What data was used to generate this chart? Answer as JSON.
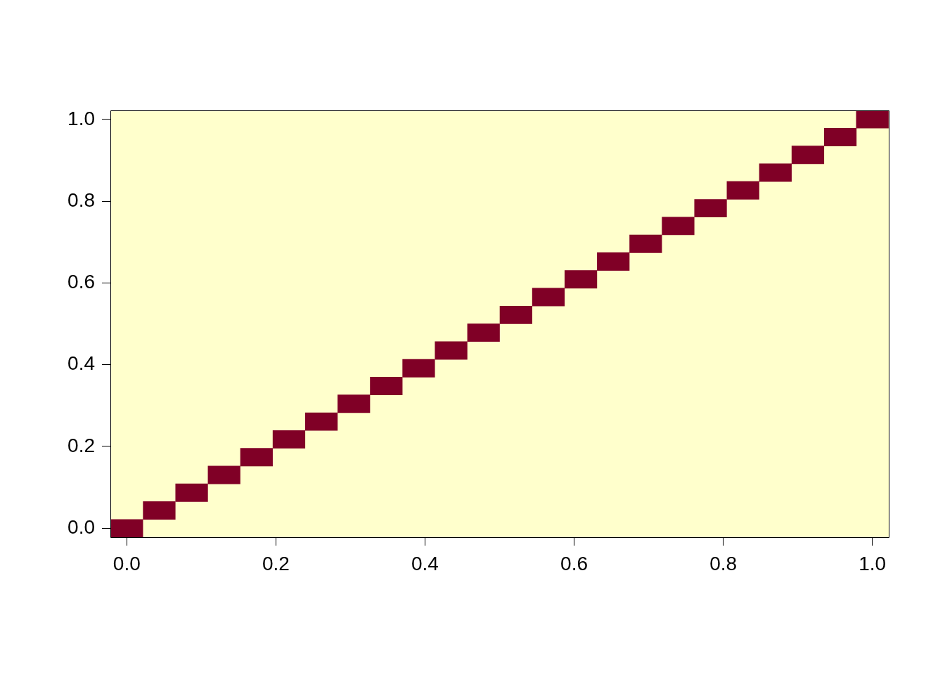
{
  "chart_data": {
    "type": "bar",
    "x": [
      0,
      0.0435,
      0.087,
      0.1305,
      0.174,
      0.2175,
      0.261,
      0.3045,
      0.348,
      0.3915,
      0.435,
      0.4785,
      0.522,
      0.5655,
      0.609,
      0.6525,
      0.696,
      0.7395,
      0.783,
      0.8265,
      0.87,
      0.9135,
      0.957,
      1
    ],
    "series": [
      {
        "color": "#800026",
        "base": [
          -0.022,
          0.0215,
          0.065,
          0.1085,
          0.152,
          0.1955,
          0.239,
          0.2825,
          0.326,
          0.3695,
          0.413,
          0.4565,
          0.5,
          0.5435,
          0.587,
          0.6305,
          0.674,
          0.7175,
          0.761,
          0.8045,
          0.848,
          0.8915,
          0.935,
          0.9785
        ],
        "values": [
          0.0435,
          0.0435,
          0.0435,
          0.0435,
          0.0435,
          0.0435,
          0.0435,
          0.0435,
          0.0435,
          0.0435,
          0.0435,
          0.0435,
          0.0435,
          0.0435,
          0.0435,
          0.0435,
          0.0435,
          0.0435,
          0.0435,
          0.0435,
          0.0435,
          0.0435,
          0.0435,
          0.0435
        ]
      }
    ],
    "xlim": [
      -0.022,
      1.022
    ],
    "xticks": [
      {
        "value": 0,
        "label": "0.0"
      },
      {
        "value": 0.2,
        "label": "0.2"
      },
      {
        "value": 0.4,
        "label": "0.4"
      },
      {
        "value": 0.6,
        "label": "0.6"
      },
      {
        "value": 0.8,
        "label": "0.8"
      },
      {
        "value": 1,
        "label": "1.0"
      }
    ],
    "ylim": [
      -0.022,
      1.022
    ],
    "yticks": [
      {
        "value": 0,
        "label": "0.0"
      },
      {
        "value": 0.2,
        "label": "0.2"
      },
      {
        "value": 0.4,
        "label": "0.4"
      },
      {
        "value": 0.6,
        "label": "0.6"
      },
      {
        "value": 0.8,
        "label": "0.8"
      },
      {
        "value": 1,
        "label": "1.0"
      }
    ]
  }
}
